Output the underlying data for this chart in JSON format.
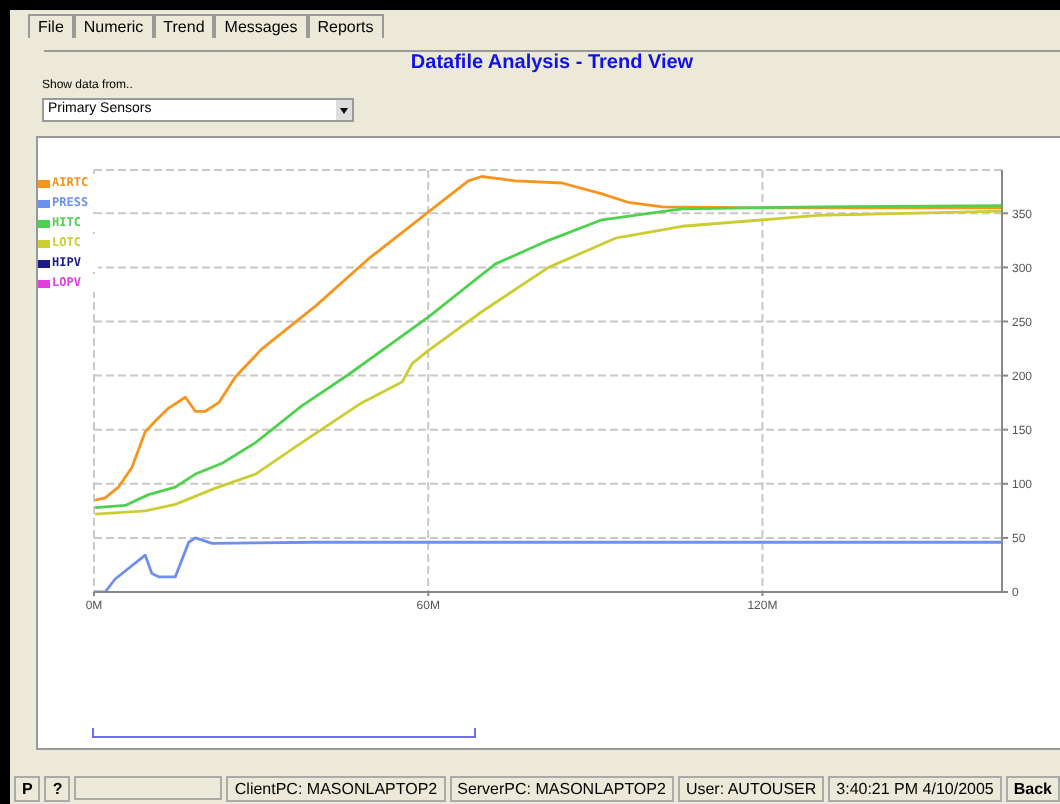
{
  "chart_data": {
    "type": "line",
    "title": "Datafile Analysis - Trend View",
    "annotations": [
      "File",
      "Numeric",
      "Trend",
      "Messages",
      "Reports",
      "Show data from..",
      "Primary Sensors",
      "P",
      "?",
      "ClientPC: MASONLAPTOP2",
      "ServerPC: MASONLAPTOP2",
      "User: AUTOUSER",
      "3:40:21 PM 4/10/2005",
      "Back"
    ],
    "series": [
      {
        "name": "AIRTC",
        "color": "#f7941d",
        "x": [
          0.2,
          2,
          4.4,
          6.8,
          9.2,
          11,
          13.4,
          16.4,
          18.2,
          20,
          22.4,
          25.4,
          30.2,
          39.7,
          49.3,
          60,
          67.2,
          69.6,
          75.6,
          84,
          91.2,
          96,
          102,
          120,
          140,
          163
        ],
        "values": [
          85,
          87,
          97,
          115,
          148,
          158,
          170,
          180,
          167,
          167,
          175,
          199,
          225,
          264,
          308,
          351,
          380,
          384,
          380,
          378,
          368,
          360,
          356,
          355,
          355,
          355
        ]
      },
      {
        "name": "PRESS",
        "color": "#6f8ff0",
        "x": [
          0.2,
          2,
          3.8,
          9.2,
          10.4,
          11.6,
          14.6,
          17,
          18.2,
          21.2,
          40,
          80,
          120,
          163
        ],
        "values": [
          0,
          0,
          12,
          34,
          17,
          14,
          14,
          46,
          50,
          45,
          46,
          46,
          46,
          46
        ]
      },
      {
        "name": "HITC",
        "color": "#4fd14f",
        "x": [
          0.2,
          5.6,
          9.8,
          14.6,
          18.2,
          23,
          29,
          37.3,
          45.7,
          60,
          72,
          81.6,
          91.2,
          99.6,
          105.6,
          130,
          163
        ],
        "values": [
          78,
          80,
          90,
          97,
          109,
          119,
          138,
          172,
          201,
          254,
          303,
          325,
          344,
          350,
          354,
          356,
          357
        ]
      },
      {
        "name": "LOTC",
        "color": "#cccc33",
        "x": [
          0.2,
          9.2,
          14.6,
          21.8,
          29,
          37.3,
          48.1,
          55.3,
          57.1,
          60,
          69.6,
          81.6,
          93.6,
          105.6,
          130,
          163
        ],
        "values": [
          72,
          75,
          81,
          96,
          109,
          138,
          175,
          194,
          211,
          223,
          259,
          300,
          327,
          338,
          348,
          352
        ]
      },
      {
        "name": "HIPV",
        "color": "#1a1a8c"
      },
      {
        "name": "LOPV",
        "color": "#e040e0"
      }
    ],
    "xlim": [
      0,
      163
    ],
    "xticks": [
      {
        "value": 0,
        "label": "0M"
      },
      {
        "value": 60,
        "label": "60M"
      },
      {
        "value": 120,
        "label": "120M"
      }
    ],
    "ylim": [
      0,
      390
    ],
    "yticks": [
      0,
      50,
      100,
      150,
      200,
      250,
      300,
      350
    ],
    "grid": true,
    "legend": "top left",
    "marker": "none",
    "line_style": "solid"
  }
}
